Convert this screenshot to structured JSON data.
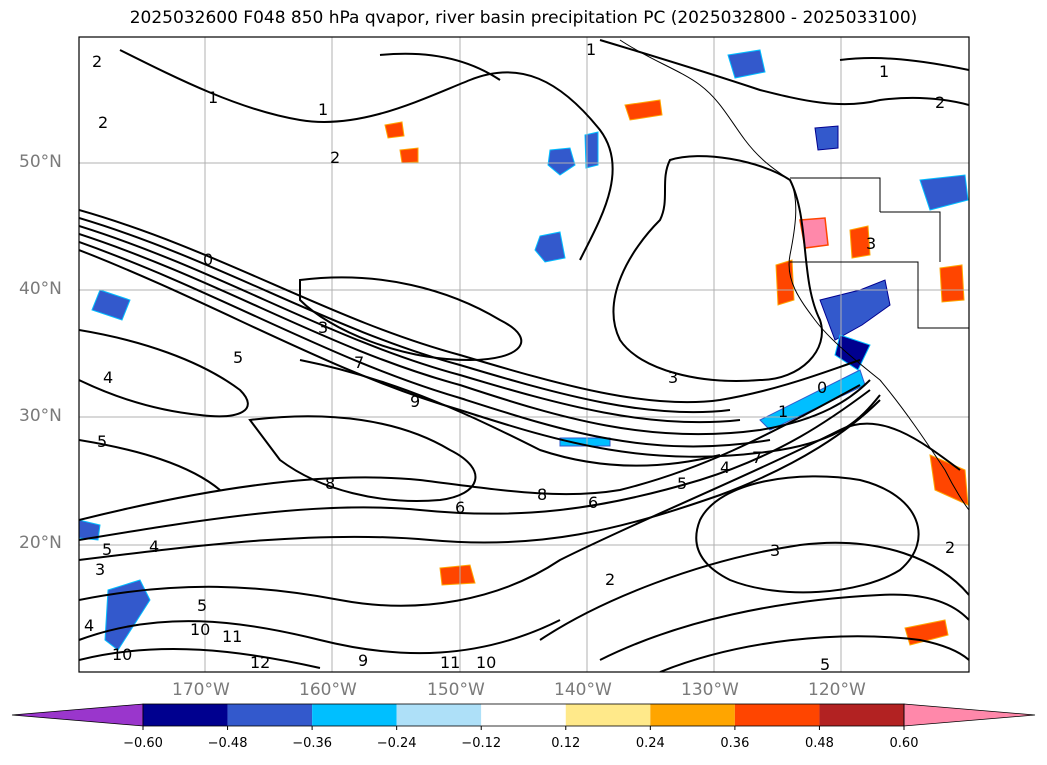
{
  "title": "2025032600 F048 850 hPa qvapor, river basin precipitation PC (2025032800 - 2025033100)",
  "lat_labels": [
    "50°N",
    "40°N",
    "30°N",
    "20°N"
  ],
  "lon_labels": [
    "170°W",
    "160°W",
    "150°W",
    "140°W",
    "130°W",
    "120°W"
  ],
  "contour_labels": [
    "2",
    "1",
    "1",
    "2",
    "2",
    "1",
    "1",
    "0",
    "3",
    "7",
    "9",
    "4",
    "5",
    "5",
    "8",
    "6",
    "4",
    "3",
    "5",
    "4",
    "10",
    "11",
    "12",
    "10",
    "9",
    "11",
    "10",
    "8",
    "6",
    "5",
    "7",
    "4",
    "3",
    "2",
    "3",
    "5",
    "1",
    "0",
    "2",
    "3",
    "5",
    "2"
  ],
  "colorbar": {
    "ticks": [
      "−0.60",
      "−0.48",
      "−0.36",
      "−0.24",
      "−0.12",
      "0.12",
      "0.24",
      "0.36",
      "0.48",
      "0.60"
    ],
    "colors": [
      "#9a36cc",
      "#00008f",
      "#3359cc",
      "#00bfff",
      "#aee0f8",
      "#ffffff",
      "#ffe98a",
      "#ffa500",
      "#ff4500",
      "#b22222",
      "#ff88aa"
    ]
  }
}
